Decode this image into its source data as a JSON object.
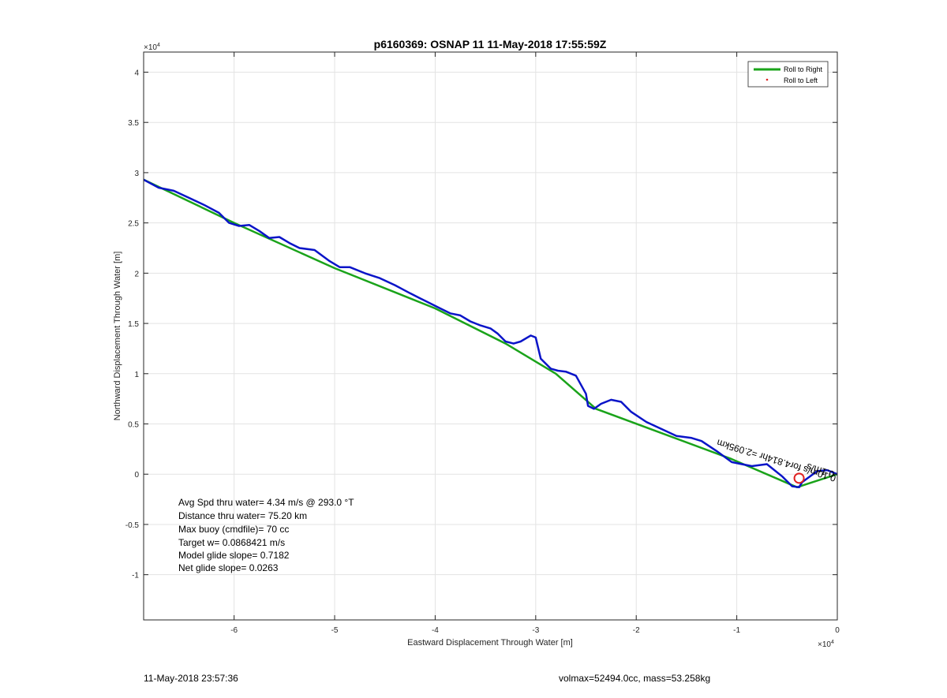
{
  "chart_data": {
    "type": "line",
    "title": "p6160369: OSNAP 11 11-May-2018 17:55:59Z",
    "xlabel": "Eastward Displacement Through Water [m]",
    "ylabel": "Northward Displacement Through Water [m]",
    "x_exponent": "×10^4",
    "y_exponent": "×10^4",
    "x_exp_base": "×10",
    "x_exp_power": "4",
    "y_exp_base": "×10",
    "y_exp_power": "4",
    "xlim": [
      -6.9,
      0
    ],
    "ylim": [
      -1.45,
      4.2
    ],
    "grid": true,
    "x_ticks": [
      -6,
      -5,
      -4,
      -3,
      -2,
      -1,
      0
    ],
    "x_tick_labels": [
      "-6",
      "-5",
      "-4",
      "-3",
      "-2",
      "-1",
      "0"
    ],
    "y_ticks": [
      -1,
      -0.5,
      0,
      0.5,
      1,
      1.5,
      2,
      2.5,
      3,
      3.5,
      4
    ],
    "y_tick_labels": [
      "-1",
      "-0.5",
      "0",
      "0.5",
      "1",
      "1.5",
      "2",
      "2.5",
      "3",
      "3.5",
      "4"
    ],
    "legend": {
      "placement": "top-right",
      "entries": [
        {
          "label": "Roll to Right",
          "color": "#1aa31a",
          "marker": "line"
        },
        {
          "label": "Roll to Left",
          "color": "#e02020",
          "marker": "dot"
        }
      ]
    },
    "series": [
      {
        "name": "Roll to Right",
        "color": "#1aa31a",
        "x": [
          0,
          -0.4,
          -1.05,
          -2.4,
          -2.8,
          -3.3,
          -4.0,
          -5.0,
          -6.0,
          -6.9
        ],
        "y": [
          0,
          -0.13,
          0.15,
          0.65,
          1.0,
          1.3,
          1.65,
          2.05,
          2.5,
          2.93
        ]
      },
      {
        "color": "#0a14c8",
        "x": [
          0,
          -0.1,
          -0.2,
          -0.35,
          -0.38,
          -0.45,
          -0.55,
          -0.7,
          -0.85,
          -0.95,
          -1.05,
          -1.2,
          -1.35,
          -1.45,
          -1.6,
          -1.75,
          -1.9,
          -2.05,
          -2.15,
          -2.25,
          -2.35,
          -2.42,
          -2.48,
          -2.5,
          -2.6,
          -2.7,
          -2.78,
          -2.85,
          -2.95,
          -3.0,
          -3.05,
          -3.15,
          -3.22,
          -3.3,
          -3.38,
          -3.45,
          -3.55,
          -3.65,
          -3.75,
          -3.85,
          -3.95,
          -4.05,
          -4.15,
          -4.25,
          -4.4,
          -4.55,
          -4.7,
          -4.85,
          -4.95,
          -5.05,
          -5.2,
          -5.35,
          -5.45,
          -5.55,
          -5.65,
          -5.75,
          -5.85,
          -5.95,
          -6.05,
          -6.15,
          -6.3,
          -6.45,
          -6.6,
          -6.75,
          -6.9
        ],
        "y": [
          0,
          0.04,
          0.03,
          -0.08,
          -0.13,
          -0.12,
          -0.02,
          0.1,
          0.08,
          0.1,
          0.12,
          0.23,
          0.33,
          0.36,
          0.38,
          0.45,
          0.52,
          0.62,
          0.72,
          0.74,
          0.7,
          0.65,
          0.68,
          0.8,
          0.98,
          1.02,
          1.03,
          1.05,
          1.15,
          1.36,
          1.38,
          1.32,
          1.3,
          1.32,
          1.4,
          1.45,
          1.48,
          1.52,
          1.58,
          1.6,
          1.65,
          1.7,
          1.75,
          1.8,
          1.88,
          1.95,
          2.0,
          2.06,
          2.06,
          2.12,
          2.23,
          2.25,
          2.3,
          2.36,
          2.35,
          2.42,
          2.48,
          2.47,
          2.5,
          2.6,
          2.68,
          2.75,
          2.82,
          2.85,
          2.93
        ]
      }
    ],
    "annotations": [
      {
        "text": "Avg Spd thru water=  4.34 m/s @ 293.0 °T"
      },
      {
        "text": "Distance thru water= 75.20 km"
      },
      {
        "text": "Max buoy (cmdfile)= 70 cc"
      },
      {
        "text": "Target w= 0.0868421 m/s"
      },
      {
        "text": "Model glide slope= 0.7182"
      },
      {
        "text": "Net glide slope= 0.0263"
      }
    ],
    "rotated_annotation": "0.10m/s for4.814hr =2.095km",
    "rotated_annotation_2": "0.1m/s",
    "marker_circle": {
      "x": -0.38,
      "y": -0.04,
      "color": "#e02020"
    }
  },
  "footer": {
    "timestamp": "11-May-2018 23:57:36",
    "stats": "volmax=52494.0cc, mass=53.258kg"
  }
}
